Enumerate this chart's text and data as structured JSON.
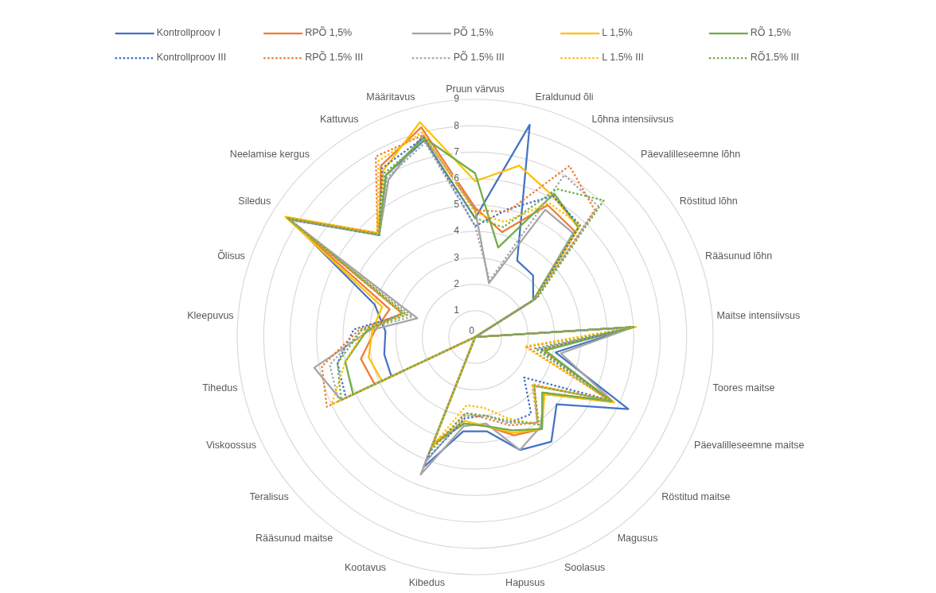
{
  "chart_data": {
    "type": "radar",
    "categories": [
      "Pruun värvus",
      "Eraldunud õli",
      "Lõhna intensiivsus",
      "Päevalilleseemne lõhn",
      "Röstitud lõhn",
      "Rääsunud lõhn",
      "Maitse intensiivsus",
      "Toores maitse",
      "Päevalilleseemne maitse",
      "Röstitud maitse",
      "Magusus",
      "Soolasus",
      "Hapusus",
      "Kibedus",
      "Kootavus",
      "Rääsunud maitse",
      "Teralisus",
      "Viskoossus",
      "Tihedus",
      "Kleepuvus",
      "Õlisus",
      "Siledus",
      "Neelamise kergus",
      "Kattuvus",
      "Määritavus"
    ],
    "ylim": [
      0,
      9
    ],
    "yticks": [
      0,
      1,
      2,
      3,
      4,
      5,
      6,
      7,
      8,
      9
    ],
    "grid": true,
    "legend": "top",
    "series": [
      {
        "name": "Kontrollproov I",
        "color": "#4472c4",
        "line_style": "solid",
        "values": [
          4.5,
          8.3,
          3.3,
          3.2,
          2.6,
          0,
          6.0,
          3.1,
          6.4,
          4.0,
          4.9,
          4.6,
          3.6,
          3.6,
          5.3,
          0,
          0,
          3.5,
          3.5,
          3.4,
          4.0,
          8.3,
          5.3,
          7.0,
          7.7
        ]
      },
      {
        "name": "RPÕ 1,5%",
        "color": "#ed7d31",
        "line_style": "solid",
        "values": [
          4.9,
          4.1,
          5.7,
          5.5,
          2.6,
          0,
          6.0,
          2.6,
          5.7,
          3.3,
          4.3,
          4.0,
          3.4,
          3.3,
          4.4,
          0,
          0,
          4.2,
          4.4,
          3.8,
          3.4,
          8.4,
          5.3,
          7.4,
          8.2
        ]
      },
      {
        "name": "PÕ 1,5%",
        "color": "#a5a5a5",
        "line_style": "solid",
        "values": [
          4.8,
          2.1,
          5.5,
          5.4,
          2.6,
          0,
          6.0,
          3.3,
          5.8,
          3.4,
          4.2,
          4.6,
          3.3,
          3.4,
          5.6,
          0,
          0,
          5.6,
          6.2,
          4.0,
          2.3,
          8.4,
          5.3,
          6.8,
          7.9
        ]
      },
      {
        "name": "L 1,5%",
        "color": "#ffc000",
        "line_style": "solid",
        "values": [
          5.9,
          6.7,
          6.1,
          5.7,
          2.6,
          0,
          6.1,
          2.6,
          5.8,
          3.4,
          4.3,
          3.9,
          3.4,
          3.2,
          4.3,
          0,
          0,
          3.9,
          4.1,
          3.9,
          3.7,
          8.5,
          5.4,
          7.2,
          8.4
        ]
      },
      {
        "name": "RÕ 1,5%",
        "color": "#70ad47",
        "line_style": "solid",
        "values": [
          6.2,
          3.5,
          6.2,
          5.7,
          2.6,
          0,
          6.0,
          2.7,
          5.7,
          3.3,
          4.3,
          3.8,
          3.4,
          3.3,
          4.4,
          0,
          0,
          5.1,
          5.0,
          4.1,
          2.9,
          8.4,
          5.3,
          7.0,
          7.8
        ]
      },
      {
        "name": "Kontrollproov III",
        "color": "#4472c4",
        "line_style": "dotted",
        "values": [
          4.2,
          5.0,
          6.1,
          5.8,
          2.7,
          0,
          6.0,
          2.5,
          5.6,
          2.4,
          3.6,
          3.5,
          3.0,
          3.1,
          5.0,
          0,
          0,
          5.4,
          5.3,
          4.6,
          2.8,
          8.3,
          5.3,
          7.3,
          7.8
        ]
      },
      {
        "name": "RPÕ 1.5% III",
        "color": "#ed7d31",
        "line_style": "dotted",
        "values": [
          4.8,
          4.9,
          7.4,
          6.6,
          2.7,
          0,
          6.0,
          2.0,
          5.6,
          2.9,
          4.0,
          3.6,
          3.1,
          2.9,
          4.6,
          0,
          0,
          6.2,
          5.9,
          4.4,
          2.9,
          8.4,
          5.4,
          7.8,
          7.9
        ]
      },
      {
        "name": "PÕ 1.5% III",
        "color": "#a5a5a5",
        "line_style": "dotted",
        "values": [
          4.2,
          2.2,
          7.0,
          6.8,
          2.7,
          0,
          6.0,
          2.4,
          5.6,
          2.8,
          4.0,
          3.5,
          3.0,
          3.0,
          5.1,
          0,
          0,
          5.7,
          5.6,
          4.3,
          2.5,
          8.3,
          5.3,
          6.9,
          7.6
        ]
      },
      {
        "name": "L 1.5% III",
        "color": "#ffc000",
        "line_style": "dotted",
        "values": [
          4.7,
          4.5,
          5.8,
          5.8,
          2.7,
          0,
          6.0,
          1.9,
          5.6,
          2.8,
          4.1,
          3.3,
          2.7,
          2.6,
          4.5,
          0,
          0,
          6.0,
          5.0,
          4.2,
          2.8,
          8.4,
          5.4,
          7.6,
          8.0
        ]
      },
      {
        "name": "RÕ1.5% III",
        "color": "#70ad47",
        "line_style": "dotted",
        "values": [
          4.5,
          4.3,
          6.4,
          7.1,
          2.8,
          0,
          6.0,
          2.3,
          5.6,
          2.9,
          4.1,
          3.4,
          3.0,
          2.9,
          4.7,
          0,
          0,
          5.6,
          5.3,
          4.3,
          2.7,
          8.4,
          5.3,
          7.1,
          7.7
        ]
      }
    ]
  }
}
